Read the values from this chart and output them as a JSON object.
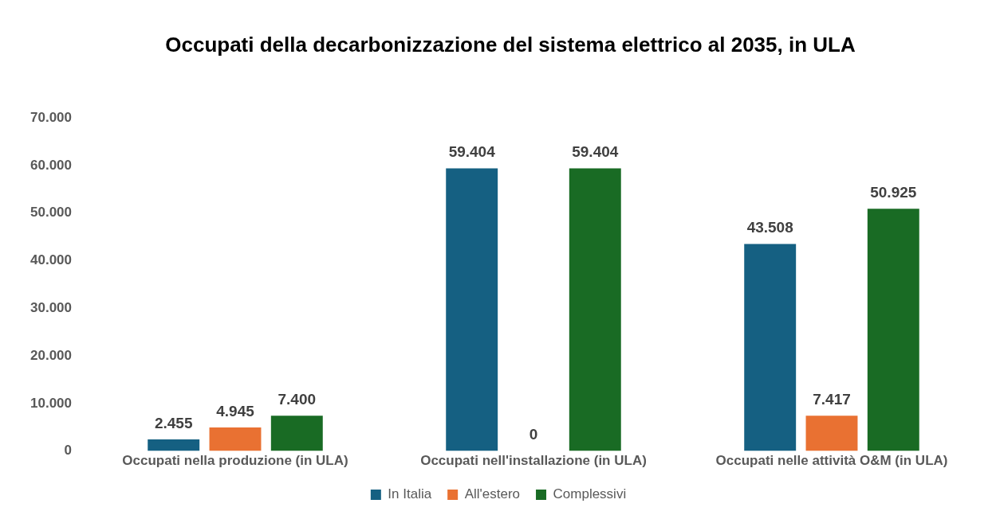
{
  "chart_data": {
    "type": "bar",
    "title": "Occupati della decarbonizzazione del sistema elettrico al 2035, in ULA",
    "categories": [
      "Occupati nella produzione (in ULA)",
      "Occupati nell'installazione (in ULA)",
      "Occupati nelle attività O&M (in ULA)"
    ],
    "series": [
      {
        "name": "In Italia",
        "color": "#156082",
        "values": [
          2455,
          59404,
          43508
        ],
        "value_labels": [
          "2.455",
          "59.404",
          "43.508"
        ]
      },
      {
        "name": "All'estero",
        "color": "#e97132",
        "values": [
          4945,
          0,
          7417
        ],
        "value_labels": [
          "4.945",
          "0",
          "7.417"
        ]
      },
      {
        "name": "Complessivi",
        "color": "#196b24",
        "values": [
          7400,
          59404,
          50925
        ],
        "value_labels": [
          "7.400",
          "59.404",
          "50.925"
        ]
      }
    ],
    "ylim": [
      0,
      70000
    ],
    "yticks": [
      {
        "value": 0,
        "label": "0"
      },
      {
        "value": 10000,
        "label": "10.000"
      },
      {
        "value": 20000,
        "label": "20.000"
      },
      {
        "value": 30000,
        "label": "30.000"
      },
      {
        "value": 40000,
        "label": "40.000"
      },
      {
        "value": 50000,
        "label": "50.000"
      },
      {
        "value": 60000,
        "label": "60.000"
      },
      {
        "value": 70000,
        "label": "70.000"
      }
    ],
    "grid": false,
    "legend": "bottom"
  }
}
